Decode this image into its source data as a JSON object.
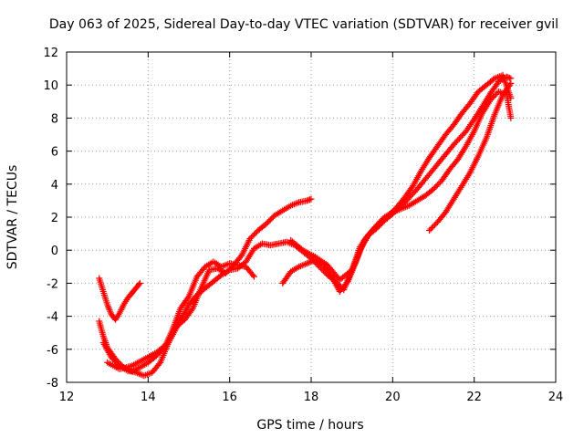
{
  "chart_data": {
    "type": "scatter",
    "title": "Day 063 of 2025, Sidereal Day-to-day VTEC variation (SDTVAR) for receiver gvil",
    "xlabel": "GPS time / hours",
    "ylabel": "SDTVAR / TECUs",
    "xlim": [
      12,
      24
    ],
    "ylim": [
      -8,
      12
    ],
    "xticks": [
      "12",
      "14",
      "16",
      "18",
      "20",
      "22",
      "24"
    ],
    "yticks": [
      "-8",
      "-6",
      "-4",
      "-2",
      "0",
      "2",
      "4",
      "6",
      "8",
      "10",
      "12"
    ],
    "grid": true,
    "marker": "plus",
    "color": "#ff0000",
    "series": [
      {
        "x": [
          12.8,
          12.9,
          13.0,
          13.1,
          13.2,
          13.3,
          13.4,
          13.5,
          13.6,
          13.7,
          13.8
        ],
        "y": [
          -1.7,
          -2.5,
          -3.3,
          -3.9,
          -4.2,
          -3.8,
          -3.3,
          -2.9,
          -2.6,
          -2.3,
          -2.0
        ]
      },
      {
        "x": [
          12.8,
          12.9,
          13.0,
          13.2,
          13.4,
          13.6,
          13.8,
          14.0,
          14.2,
          14.4,
          14.6,
          14.8,
          15.0,
          15.2,
          15.4,
          15.6,
          15.8,
          16.0,
          16.2,
          16.4,
          16.6
        ],
        "y": [
          -4.3,
          -5.2,
          -5.9,
          -6.6,
          -7.1,
          -7.3,
          -7.1,
          -6.8,
          -6.4,
          -5.9,
          -4.8,
          -3.5,
          -2.8,
          -1.6,
          -1.0,
          -0.7,
          -1.0,
          -0.8,
          -0.9,
          -1.0,
          -1.6
        ]
      },
      {
        "x": [
          12.9,
          13.1,
          13.3,
          13.5,
          13.7,
          13.9,
          14.1,
          14.3,
          14.5,
          14.7,
          14.9,
          15.1,
          15.3,
          15.5,
          15.7,
          15.9,
          16.1,
          16.3,
          16.5,
          16.7,
          16.9,
          17.1,
          17.3,
          17.5,
          17.7,
          17.9,
          18.0
        ],
        "y": [
          -5.6,
          -6.5,
          -7.0,
          -7.3,
          -7.4,
          -7.6,
          -7.4,
          -6.8,
          -5.6,
          -4.6,
          -4.2,
          -3.5,
          -2.3,
          -1.2,
          -1.1,
          -1.4,
          -0.9,
          -0.3,
          0.7,
          1.2,
          1.6,
          2.1,
          2.4,
          2.7,
          2.9,
          3.0,
          3.1
        ]
      },
      {
        "x": [
          13.0,
          13.3,
          13.6,
          13.9,
          14.2,
          14.5,
          14.8,
          15.0,
          15.2,
          15.4,
          15.6,
          15.8,
          16.0,
          16.2,
          16.4,
          16.6,
          16.8,
          17.0,
          17.2,
          17.4,
          17.6,
          17.8,
          18.0,
          18.2,
          18.4,
          18.6,
          18.8,
          19.0,
          19.2,
          19.4,
          19.6,
          19.8,
          20.0,
          20.3,
          20.6,
          20.9,
          21.2,
          21.5,
          21.8,
          22.1,
          22.4,
          22.6,
          22.8,
          22.9
        ],
        "y": [
          -6.8,
          -7.2,
          -7.0,
          -6.6,
          -6.2,
          -5.6,
          -4.2,
          -3.3,
          -2.7,
          -2.3,
          -1.9,
          -1.5,
          -1.2,
          -1.1,
          -0.7,
          0.1,
          0.4,
          0.3,
          0.4,
          0.5,
          0.3,
          -0.1,
          -0.5,
          -1.0,
          -1.5,
          -1.9,
          -2.4,
          -1.2,
          0.2,
          0.9,
          1.3,
          1.8,
          2.2,
          2.9,
          3.7,
          4.6,
          5.5,
          6.4,
          7.2,
          8.3,
          9.5,
          10.2,
          10.5,
          10.4
        ]
      },
      {
        "x": [
          17.3,
          17.5,
          17.7,
          17.9,
          18.1,
          18.3,
          18.5,
          18.7,
          18.9,
          19.1,
          19.3,
          19.5,
          19.7,
          19.9,
          20.1,
          20.3,
          20.5,
          20.7,
          20.9,
          21.1,
          21.3,
          21.5,
          21.7,
          21.9,
          22.1,
          22.3,
          22.5,
          22.7,
          22.9
        ],
        "y": [
          -2.0,
          -1.3,
          -1.0,
          -0.8,
          -0.6,
          -0.9,
          -1.6,
          -2.5,
          -1.9,
          -0.7,
          0.6,
          1.2,
          1.6,
          2.1,
          2.6,
          3.2,
          3.9,
          4.8,
          5.6,
          6.3,
          7.0,
          7.6,
          8.3,
          8.9,
          9.6,
          10.0,
          10.4,
          10.6,
          9.2
        ]
      },
      {
        "x": [
          17.5,
          17.8,
          18.1,
          18.4,
          18.7,
          19.0,
          19.2,
          19.4,
          19.6,
          19.8,
          20.0,
          20.2,
          20.4,
          20.6,
          20.8,
          21.0,
          21.2,
          21.4,
          21.6,
          21.8,
          22.0,
          22.2,
          22.4,
          22.6,
          22.8,
          22.9
        ],
        "y": [
          0.6,
          0.0,
          -0.4,
          -0.9,
          -1.8,
          -1.2,
          0.0,
          0.9,
          1.5,
          2.0,
          2.3,
          2.5,
          2.7,
          3.0,
          3.3,
          3.7,
          4.2,
          4.9,
          5.5,
          6.3,
          7.2,
          8.3,
          9.1,
          9.6,
          9.4,
          8.0
        ]
      },
      {
        "x": [
          20.9,
          21.1,
          21.3,
          21.5,
          21.7,
          21.9,
          22.1,
          22.3,
          22.5,
          22.7,
          22.9
        ],
        "y": [
          1.2,
          1.7,
          2.3,
          3.1,
          3.9,
          4.7,
          5.7,
          6.8,
          8.2,
          9.4,
          10.1
        ]
      }
    ]
  }
}
